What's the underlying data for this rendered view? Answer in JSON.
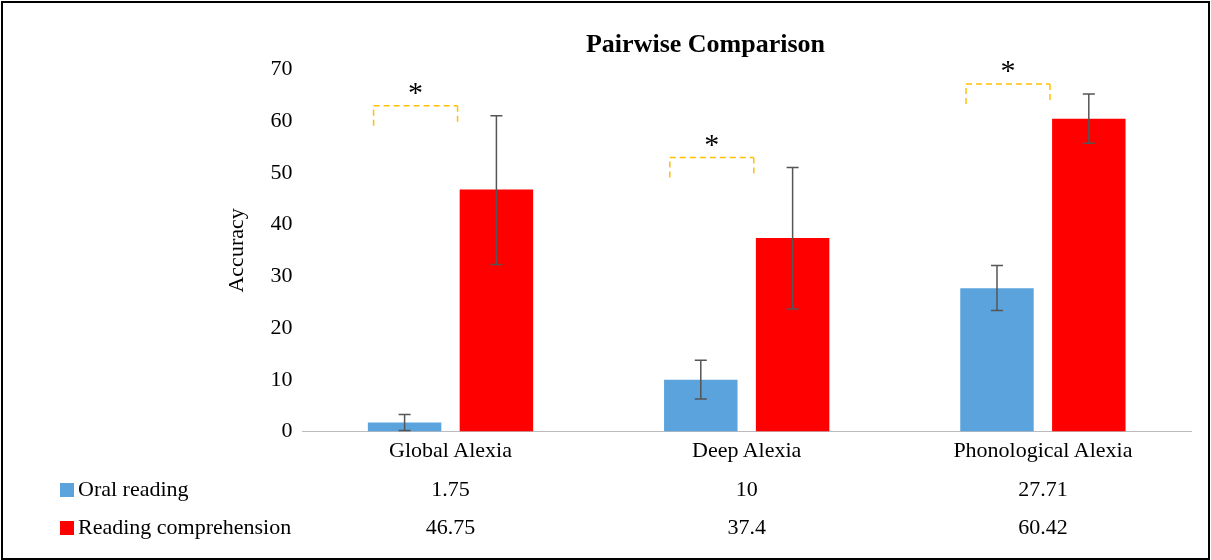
{
  "chart_data": {
    "type": "bar",
    "title": "Pairwise Comparison",
    "ylabel": "Accuracy",
    "categories": [
      "Global Alexia",
      "Deep Alexia",
      "Phonological Alexia"
    ],
    "series": [
      {
        "name": "Oral reading",
        "color": "#5ba3dd",
        "values": [
          1.75,
          10,
          27.71
        ],
        "errors": [
          [
            0.2,
            3.3
          ],
          [
            6.3,
            13.8
          ],
          [
            23.4,
            32.1
          ]
        ]
      },
      {
        "name": "Reading comprehension",
        "color": "#ff0000",
        "values": [
          46.75,
          37.4,
          60.42
        ],
        "errors": [
          [
            32.3,
            61
          ],
          [
            23.7,
            51
          ],
          [
            55.7,
            65.2
          ]
        ]
      }
    ],
    "ylim": [
      0,
      70
    ],
    "yticks": [
      0,
      10,
      20,
      30,
      40,
      50,
      60,
      70
    ],
    "grid": false,
    "legend": "bottom",
    "data_labels": true,
    "annotations": [
      "*",
      "*",
      "*"
    ]
  }
}
